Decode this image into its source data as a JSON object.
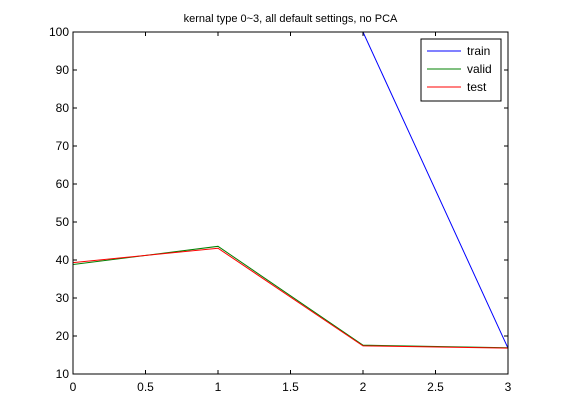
{
  "chart_data": {
    "type": "line",
    "title": "kernal type 0~3, all default settings, no PCA",
    "xlabel": "",
    "ylabel": "",
    "xlim": [
      0,
      3
    ],
    "ylim": [
      10,
      100
    ],
    "xticks": [
      "0",
      "0.5",
      "1",
      "1.5",
      "2",
      "2.5",
      "3"
    ],
    "yticks": [
      "10",
      "20",
      "30",
      "40",
      "50",
      "60",
      "70",
      "80",
      "90",
      "100"
    ],
    "grid": false,
    "legend_position": "top-right",
    "x": [
      0,
      1,
      2,
      3
    ],
    "series": [
      {
        "name": "train",
        "color": "#0000ff",
        "values": [
          100,
          100,
          100,
          16.8
        ]
      },
      {
        "name": "valid",
        "color": "#008000",
        "values": [
          38.8,
          43.6,
          17.6,
          16.9
        ]
      },
      {
        "name": "test",
        "color": "#ff0000",
        "values": [
          39.3,
          43.1,
          17.4,
          16.8
        ]
      }
    ]
  }
}
